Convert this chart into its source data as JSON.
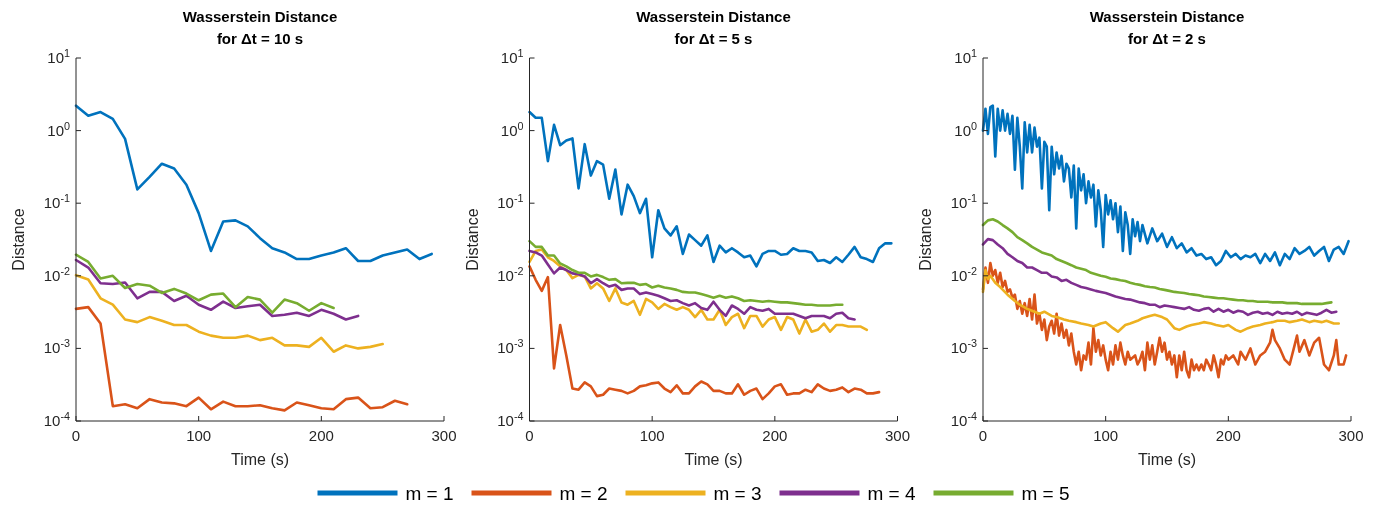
{
  "chart_data": [
    {
      "type": "line",
      "title": "Wasserstein Distance",
      "subtitle": "for  Δt = 10 s",
      "xlabel": "Time (s)",
      "ylabel": "Distance",
      "log": "y",
      "legend": "bottom",
      "xlim": [
        0,
        300
      ],
      "xticks": [
        0,
        100,
        200,
        300
      ],
      "ylim": [
        0.0001,
        10
      ],
      "yticks": [
        {
          "value": 0.0001,
          "label": "10$^{-4}$"
        },
        {
          "value": 0.001,
          "label": "10$^{-3}$"
        },
        {
          "value": 0.01,
          "label": "10$^{-2}$"
        },
        {
          "value": 0.1,
          "label": "10$^{-1}$"
        },
        {
          "value": 1,
          "label": "10$^{0}$"
        },
        {
          "value": 10,
          "label": "10$^{1}$"
        }
      ],
      "series": [
        {
          "name": "m = 1",
          "color": "#0072bd",
          "x": [
            0,
            10,
            20,
            30,
            40,
            50,
            60,
            70,
            80,
            90,
            100,
            110,
            120,
            130,
            140,
            150,
            160,
            170,
            180,
            190,
            200,
            210,
            220,
            230,
            240,
            250,
            260,
            270,
            280,
            290
          ],
          "values": [
            2.2,
            1.6,
            1.8,
            1.45,
            0.77,
            0.155,
            0.23,
            0.35,
            0.3,
            0.18,
            0.073,
            0.022,
            0.056,
            0.058,
            0.048,
            0.033,
            0.024,
            0.021,
            0.017,
            0.017,
            0.019,
            0.021,
            0.024,
            0.016,
            0.016,
            0.019,
            0.021,
            0.023,
            0.017,
            0.02
          ]
        },
        {
          "name": "m = 2",
          "color": "#d95319",
          "x": [
            0,
            10,
            20,
            30,
            40,
            50,
            60,
            70,
            80,
            90,
            100,
            110,
            120,
            130,
            140,
            150,
            160,
            170,
            180,
            190,
            200,
            210,
            220,
            230,
            240,
            250,
            260,
            270
          ],
          "values": [
            0.0035,
            0.0037,
            0.0022,
            0.00016,
            0.00017,
            0.00015,
            0.0002,
            0.00018,
            0.000175,
            0.00016,
            0.00021,
            0.000145,
            0.000185,
            0.00016,
            0.00016,
            0.000165,
            0.00015,
            0.00014,
            0.00018,
            0.000165,
            0.00015,
            0.000145,
            0.0002,
            0.00021,
            0.00015,
            0.000155,
            0.00019,
            0.00017
          ]
        },
        {
          "name": "m = 3",
          "color": "#edb120",
          "x": [
            0,
            10,
            20,
            30,
            40,
            50,
            60,
            70,
            80,
            90,
            100,
            110,
            120,
            130,
            140,
            150,
            160,
            170,
            180,
            190,
            200,
            210,
            220,
            230,
            240,
            250
          ],
          "values": [
            0.0102,
            0.0089,
            0.0049,
            0.004,
            0.0025,
            0.0023,
            0.0027,
            0.0024,
            0.0021,
            0.0021,
            0.0017,
            0.0015,
            0.0014,
            0.0014,
            0.0015,
            0.0013,
            0.0014,
            0.0011,
            0.0011,
            0.00105,
            0.0014,
            0.0009,
            0.0011,
            0.001,
            0.00105,
            0.00115
          ]
        },
        {
          "name": "m = 4",
          "color": "#7e2f8e",
          "x": [
            0,
            10,
            20,
            30,
            40,
            50,
            60,
            70,
            80,
            90,
            100,
            110,
            120,
            130,
            140,
            150,
            160,
            170,
            180,
            190,
            200,
            210,
            220,
            230
          ],
          "values": [
            0.0165,
            0.013,
            0.0079,
            0.0077,
            0.0081,
            0.0049,
            0.006,
            0.006,
            0.0045,
            0.0053,
            0.004,
            0.0034,
            0.0044,
            0.0036,
            0.0038,
            0.004,
            0.0028,
            0.0029,
            0.0031,
            0.0028,
            0.0034,
            0.003,
            0.0025,
            0.0028
          ]
        },
        {
          "name": "m = 5",
          "color": "#77ac30",
          "x": [
            0,
            10,
            20,
            30,
            40,
            50,
            60,
            70,
            80,
            90,
            100,
            110,
            120,
            130,
            140,
            150,
            160,
            170,
            180,
            190,
            200,
            210
          ],
          "values": [
            0.0195,
            0.0155,
            0.0092,
            0.01,
            0.0068,
            0.0077,
            0.0073,
            0.0058,
            0.0066,
            0.0057,
            0.0046,
            0.0055,
            0.0057,
            0.0037,
            0.0051,
            0.0047,
            0.0031,
            0.0047,
            0.0042,
            0.0033,
            0.0042,
            0.0036
          ]
        }
      ]
    },
    {
      "type": "line",
      "title": "Wasserstein Distance",
      "subtitle": "for  Δt = 5 s",
      "xlabel": "Time (s)",
      "ylabel": "Distance",
      "log": "y",
      "xlim": [
        0,
        300
      ],
      "xticks": [
        0,
        100,
        200,
        300
      ],
      "ylim": [
        0.0001,
        10
      ],
      "yticks": [
        {
          "value": 0.0001,
          "label": "10$^{-4}$"
        },
        {
          "value": 0.001,
          "label": "10$^{-3}$"
        },
        {
          "value": 0.01,
          "label": "10$^{-2}$"
        },
        {
          "value": 0.1,
          "label": "10$^{-1}$"
        },
        {
          "value": 1,
          "label": "10$^{0}$"
        },
        {
          "value": 10,
          "label": "10$^{1}$"
        }
      ],
      "series": [
        {
          "color": "#0072bd",
          "x": [
            0,
            5,
            10,
            15,
            20,
            25,
            30,
            35,
            40,
            45,
            50,
            55,
            60,
            65,
            70,
            75,
            80,
            85,
            90,
            95,
            100,
            105,
            110,
            115,
            120,
            125,
            130,
            135,
            140,
            145,
            150,
            155,
            160,
            165,
            170,
            175,
            180,
            185,
            190,
            195,
            200,
            205,
            210,
            215,
            220,
            225,
            230,
            235,
            240,
            245,
            250,
            255,
            260,
            265,
            270,
            275,
            280,
            285,
            290,
            295
          ],
          "values": [
            1.8,
            1.5,
            1.5,
            0.38,
            1.2,
            0.63,
            0.73,
            0.78,
            0.16,
            0.65,
            0.24,
            0.38,
            0.34,
            0.115,
            0.29,
            0.07,
            0.18,
            0.125,
            0.073,
            0.115,
            0.018,
            0.08,
            0.045,
            0.036,
            0.048,
            0.02,
            0.037,
            0.031,
            0.026,
            0.036,
            0.0155,
            0.026,
            0.021,
            0.024,
            0.021,
            0.018,
            0.019,
            0.0135,
            0.02,
            0.022,
            0.022,
            0.0195,
            0.02,
            0.024,
            0.022,
            0.022,
            0.021,
            0.016,
            0.0165,
            0.015,
            0.018,
            0.0155,
            0.0195,
            0.025,
            0.018,
            0.017,
            0.0155,
            0.024,
            0.028,
            0.028
          ]
        },
        {
          "color": "#d95319",
          "x": [
            0,
            5,
            10,
            15,
            20,
            25,
            30,
            35,
            40,
            45,
            50,
            55,
            60,
            65,
            70,
            75,
            80,
            85,
            90,
            95,
            100,
            105,
            110,
            115,
            120,
            125,
            130,
            135,
            140,
            145,
            150,
            155,
            160,
            165,
            170,
            175,
            180,
            185,
            190,
            195,
            200,
            205,
            210,
            215,
            220,
            225,
            230,
            235,
            240,
            245,
            250,
            255,
            260,
            265,
            270,
            275,
            280,
            285
          ],
          "values": [
            0.0135,
            0.0088,
            0.0062,
            0.0096,
            0.00053,
            0.0021,
            0.0008,
            0.00028,
            0.00027,
            0.00034,
            0.0003,
            0.00022,
            0.00023,
            0.00028,
            0.00027,
            0.00026,
            0.00024,
            0.00026,
            0.0003,
            0.00031,
            0.00033,
            0.00034,
            0.00028,
            0.00025,
            0.00031,
            0.00024,
            0.00024,
            0.0003,
            0.00035,
            0.00032,
            0.00026,
            0.00026,
            0.00024,
            0.00024,
            0.00032,
            0.00023,
            0.00026,
            0.00028,
            0.0002,
            0.00024,
            0.0003,
            0.00032,
            0.00023,
            0.00024,
            0.00024,
            0.00027,
            0.00025,
            0.00032,
            0.00028,
            0.00026,
            0.00027,
            0.00029,
            0.00025,
            0.00028,
            0.00027,
            0.00024,
            0.00024,
            0.00025
          ]
        },
        {
          "color": "#edb120",
          "x": [
            0,
            5,
            10,
            15,
            20,
            25,
            30,
            35,
            40,
            45,
            50,
            55,
            60,
            65,
            70,
            75,
            80,
            85,
            90,
            95,
            100,
            105,
            110,
            115,
            120,
            125,
            130,
            135,
            140,
            145,
            150,
            155,
            160,
            165,
            170,
            175,
            180,
            185,
            190,
            195,
            200,
            205,
            210,
            215,
            220,
            225,
            230,
            235,
            240,
            245,
            250,
            255,
            260,
            265,
            270,
            275
          ],
          "values": [
            0.0155,
            0.022,
            0.023,
            0.018,
            0.016,
            0.0135,
            0.012,
            0.0093,
            0.0103,
            0.0098,
            0.0067,
            0.0079,
            0.0067,
            0.0045,
            0.0067,
            0.0043,
            0.004,
            0.0045,
            0.0029,
            0.0048,
            0.0043,
            0.0035,
            0.0041,
            0.0037,
            0.0034,
            0.0037,
            0.0034,
            0.0027,
            0.0034,
            0.0025,
            0.0025,
            0.0034,
            0.0021,
            0.0027,
            0.003,
            0.0019,
            0.0028,
            0.0028,
            0.002,
            0.0025,
            0.0027,
            0.0018,
            0.0027,
            0.0025,
            0.0016,
            0.0025,
            0.0017,
            0.0018,
            0.0022,
            0.0017,
            0.0021,
            0.0021,
            0.002,
            0.002,
            0.002,
            0.0018
          ]
        },
        {
          "color": "#7e2f8e",
          "x": [
            0,
            5,
            10,
            15,
            20,
            25,
            30,
            35,
            40,
            45,
            50,
            55,
            60,
            65,
            70,
            75,
            80,
            85,
            90,
            95,
            100,
            105,
            110,
            115,
            120,
            125,
            130,
            135,
            140,
            145,
            150,
            155,
            160,
            165,
            170,
            175,
            180,
            185,
            190,
            195,
            200,
            205,
            210,
            215,
            220,
            225,
            230,
            235,
            240,
            245,
            250,
            255,
            260,
            265
          ],
          "values": [
            0.022,
            0.021,
            0.019,
            0.0143,
            0.0108,
            0.013,
            0.012,
            0.0108,
            0.0105,
            0.0098,
            0.0079,
            0.009,
            0.0079,
            0.0071,
            0.0075,
            0.0064,
            0.0067,
            0.0067,
            0.0056,
            0.0059,
            0.0056,
            0.0053,
            0.0049,
            0.0045,
            0.0046,
            0.0042,
            0.0039,
            0.0042,
            0.0036,
            0.0034,
            0.0044,
            0.0034,
            0.0028,
            0.0039,
            0.0035,
            0.003,
            0.0037,
            0.0034,
            0.0033,
            0.0035,
            0.003,
            0.003,
            0.003,
            0.003,
            0.0028,
            0.0026,
            0.0028,
            0.0028,
            0.0028,
            0.0026,
            0.003,
            0.0031,
            0.0026,
            0.0025
          ]
        },
        {
          "color": "#77ac30",
          "x": [
            0,
            5,
            10,
            15,
            20,
            25,
            30,
            35,
            40,
            45,
            50,
            55,
            60,
            65,
            70,
            75,
            80,
            85,
            90,
            95,
            100,
            105,
            110,
            115,
            120,
            125,
            130,
            135,
            140,
            145,
            150,
            155,
            160,
            165,
            170,
            175,
            180,
            185,
            190,
            195,
            200,
            205,
            210,
            215,
            220,
            225,
            230,
            235,
            240,
            245,
            250,
            255
          ],
          "values": [
            0.03,
            0.025,
            0.025,
            0.019,
            0.019,
            0.0148,
            0.0135,
            0.012,
            0.011,
            0.011,
            0.0098,
            0.0103,
            0.0096,
            0.0088,
            0.009,
            0.0079,
            0.008,
            0.008,
            0.0075,
            0.0077,
            0.0069,
            0.0073,
            0.0069,
            0.0067,
            0.0064,
            0.006,
            0.0059,
            0.0059,
            0.0056,
            0.0053,
            0.005,
            0.0053,
            0.005,
            0.0052,
            0.0049,
            0.0045,
            0.0046,
            0.0045,
            0.0044,
            0.0045,
            0.0044,
            0.0043,
            0.0043,
            0.0042,
            0.0041,
            0.004,
            0.004,
            0.0039,
            0.0039,
            0.0039,
            0.004,
            0.004
          ]
        }
      ]
    },
    {
      "type": "line",
      "title": "Wasserstein Distance",
      "subtitle": "for  Δt = 2 s",
      "xlabel": "Time (s)",
      "ylabel": "Distance",
      "log": "y",
      "xlim": [
        0,
        300
      ],
      "xticks": [
        0,
        100,
        200,
        300
      ],
      "ylim": [
        0.0001,
        10
      ],
      "yticks": [
        {
          "value": 0.0001,
          "label": "10$^{-4}$"
        },
        {
          "value": 0.001,
          "label": "10$^{-3}$"
        },
        {
          "value": 0.01,
          "label": "10$^{-2}$"
        },
        {
          "value": 0.1,
          "label": "10$^{-1}$"
        },
        {
          "value": 1,
          "label": "10$^{0}$"
        },
        {
          "value": 10,
          "label": "10$^{1}$"
        }
      ],
      "series": [
        {
          "color": "#0072bd",
          "x": [
            0,
            2,
            4,
            6,
            8,
            10,
            12,
            14,
            16,
            18,
            20,
            22,
            24,
            26,
            28,
            30,
            32,
            34,
            36,
            38,
            40,
            42,
            44,
            46,
            48,
            50,
            52,
            54,
            56,
            58,
            60,
            62,
            64,
            66,
            68,
            70,
            72,
            74,
            76,
            78,
            80,
            82,
            84,
            86,
            88,
            90,
            92,
            94,
            96,
            98,
            100,
            102,
            104,
            106,
            108,
            110,
            112,
            114,
            116,
            118,
            120,
            122,
            124,
            126,
            128,
            130,
            134,
            138,
            142,
            146,
            150,
            154,
            158,
            162,
            166,
            170,
            174,
            178,
            182,
            186,
            190,
            194,
            198,
            202,
            206,
            210,
            214,
            218,
            222,
            226,
            230,
            234,
            238,
            242,
            246,
            250,
            254,
            258,
            262,
            266,
            270,
            274,
            278,
            282,
            286,
            290,
            294,
            298
          ],
          "values": [
            1.0,
            2.0,
            0.9,
            2.1,
            2.2,
            0.44,
            2.0,
            1.0,
            1.9,
            1.0,
            1.7,
            0.9,
            1.6,
            0.29,
            1.5,
            0.6,
            0.16,
            1.3,
            0.5,
            1.2,
            0.5,
            1.1,
            0.6,
            0.8,
            0.16,
            0.7,
            0.6,
            0.08,
            0.6,
            0.25,
            0.5,
            0.3,
            0.45,
            0.2,
            0.35,
            0.3,
            0.12,
            0.33,
            0.045,
            0.3,
            0.15,
            0.25,
            0.1,
            0.2,
            0.12,
            0.18,
            0.048,
            0.15,
            0.08,
            0.025,
            0.13,
            0.07,
            0.11,
            0.06,
            0.1,
            0.04,
            0.09,
            0.022,
            0.075,
            0.05,
            0.02,
            0.06,
            0.035,
            0.055,
            0.03,
            0.05,
            0.028,
            0.045,
            0.03,
            0.038,
            0.025,
            0.034,
            0.024,
            0.028,
            0.021,
            0.024,
            0.019,
            0.02,
            0.017,
            0.018,
            0.014,
            0.016,
            0.022,
            0.018,
            0.02,
            0.017,
            0.019,
            0.018,
            0.02,
            0.015,
            0.02,
            0.016,
            0.021,
            0.014,
            0.02,
            0.017,
            0.024,
            0.02,
            0.022,
            0.025,
            0.019,
            0.022,
            0.025,
            0.016,
            0.023,
            0.025,
            0.02,
            0.03
          ]
        },
        {
          "color": "#d95319",
          "x": [
            0,
            2,
            4,
            6,
            8,
            10,
            12,
            14,
            16,
            18,
            20,
            22,
            24,
            26,
            28,
            30,
            32,
            34,
            36,
            38,
            40,
            42,
            44,
            46,
            48,
            50,
            52,
            54,
            56,
            58,
            60,
            62,
            64,
            66,
            68,
            70,
            72,
            74,
            76,
            78,
            80,
            82,
            84,
            86,
            88,
            90,
            92,
            94,
            96,
            98,
            100,
            102,
            104,
            106,
            108,
            110,
            112,
            114,
            116,
            118,
            120,
            124,
            126,
            128,
            130,
            132,
            134,
            136,
            138,
            140,
            142,
            144,
            146,
            148,
            150,
            152,
            154,
            156,
            158,
            160,
            162,
            164,
            166,
            168,
            170,
            172,
            174,
            176,
            178,
            180,
            182,
            184,
            186,
            188,
            190,
            192,
            194,
            196,
            198,
            200,
            204,
            208,
            210,
            214,
            218,
            222,
            226,
            230,
            234,
            236,
            238,
            242,
            246,
            250,
            254,
            256,
            258,
            262,
            266,
            270,
            274,
            278,
            282,
            286,
            288,
            290,
            294,
            296
          ],
          "values": [
            0.0065,
            0.013,
            0.008,
            0.015,
            0.01,
            0.012,
            0.008,
            0.011,
            0.007,
            0.0085,
            0.006,
            0.0065,
            0.005,
            0.0055,
            0.0035,
            0.0045,
            0.003,
            0.0042,
            0.0028,
            0.0048,
            0.0025,
            0.0055,
            0.0022,
            0.003,
            0.0018,
            0.0025,
            0.0013,
            0.002,
            0.0024,
            0.0016,
            0.003,
            0.0015,
            0.0022,
            0.0014,
            0.0018,
            0.0011,
            0.0016,
            0.0009,
            0.0006,
            0.0009,
            0.0005,
            0.0008,
            0.0007,
            0.0012,
            0.0006,
            0.0019,
            0.0009,
            0.0013,
            0.0008,
            0.0011,
            0.0007,
            0.0005,
            0.0009,
            0.0006,
            0.0011,
            0.0007,
            0.0012,
            0.0008,
            0.0006,
            0.0009,
            0.0007,
            0.0008,
            0.0006,
            0.0007,
            0.0009,
            0.0005,
            0.0012,
            0.0007,
            0.0011,
            0.0006,
            0.0009,
            0.0014,
            0.0009,
            0.0012,
            0.0007,
            0.0009,
            0.0006,
            0.0008,
            0.0004,
            0.0008,
            0.0005,
            0.0009,
            0.0005,
            0.0004,
            0.0007,
            0.0005,
            0.0006,
            0.0005,
            0.0006,
            0.0005,
            0.0007,
            0.0006,
            0.0005,
            0.0008,
            0.0006,
            0.0004,
            0.0007,
            0.0006,
            0.0008,
            0.0007,
            0.0008,
            0.0006,
            0.0009,
            0.0007,
            0.001,
            0.0006,
            0.0008,
            0.0009,
            0.0012,
            0.0018,
            0.0013,
            0.001,
            0.0007,
            0.0006,
            0.0011,
            0.0015,
            0.0009,
            0.0013,
            0.0008,
            0.0012,
            0.0014,
            0.0006,
            0.0005,
            0.0008,
            0.0013,
            0.0006,
            0.0006,
            0.0008
          ]
        },
        {
          "color": "#edb120",
          "x": [
            0,
            2,
            4,
            6,
            10,
            14,
            20,
            26,
            30,
            36,
            40,
            46,
            50,
            56,
            60,
            66,
            70,
            76,
            80,
            86,
            90,
            96,
            100,
            106,
            110,
            116,
            120,
            126,
            130,
            136,
            140,
            146,
            150,
            156,
            160,
            166,
            170,
            176,
            180,
            186,
            190,
            196,
            200,
            206,
            210,
            216,
            220,
            226,
            230,
            236,
            240,
            246,
            250,
            256,
            260,
            266,
            270,
            276,
            280,
            286,
            290
          ],
          "values": [
            0.006,
            0.012,
            0.009,
            0.01,
            0.008,
            0.007,
            0.0055,
            0.0045,
            0.004,
            0.0035,
            0.0033,
            0.003,
            0.0032,
            0.0028,
            0.0027,
            0.0025,
            0.0024,
            0.0023,
            0.0022,
            0.0021,
            0.002,
            0.0022,
            0.0023,
            0.0019,
            0.0017,
            0.0021,
            0.0022,
            0.0024,
            0.0026,
            0.0028,
            0.0029,
            0.0027,
            0.0025,
            0.0019,
            0.0018,
            0.002,
            0.0021,
            0.0022,
            0.0023,
            0.0022,
            0.0021,
            0.002,
            0.0021,
            0.0018,
            0.0017,
            0.0019,
            0.002,
            0.0021,
            0.0022,
            0.0023,
            0.0024,
            0.0024,
            0.0023,
            0.0024,
            0.0025,
            0.0023,
            0.0024,
            0.0023,
            0.0024,
            0.0022,
            0.0022
          ]
        },
        {
          "color": "#7e2f8e",
          "x": [
            0,
            4,
            8,
            12,
            16,
            20,
            24,
            28,
            32,
            36,
            40,
            44,
            48,
            52,
            56,
            60,
            64,
            68,
            72,
            76,
            80,
            84,
            88,
            92,
            96,
            100,
            104,
            108,
            112,
            116,
            120,
            124,
            128,
            132,
            136,
            140,
            144,
            148,
            152,
            156,
            160,
            164,
            168,
            172,
            176,
            180,
            184,
            188,
            192,
            196,
            200,
            204,
            208,
            212,
            216,
            220,
            224,
            228,
            232,
            236,
            240,
            244,
            248,
            252,
            256,
            260,
            264,
            268,
            272,
            276,
            280,
            284,
            288
          ],
          "values": [
            0.027,
            0.032,
            0.031,
            0.027,
            0.024,
            0.02,
            0.018,
            0.016,
            0.015,
            0.013,
            0.013,
            0.012,
            0.011,
            0.011,
            0.0098,
            0.0095,
            0.0085,
            0.0088,
            0.008,
            0.0075,
            0.007,
            0.0068,
            0.0065,
            0.0062,
            0.006,
            0.0058,
            0.0055,
            0.0052,
            0.005,
            0.0048,
            0.0047,
            0.0045,
            0.0043,
            0.0042,
            0.004,
            0.004,
            0.0037,
            0.0039,
            0.0038,
            0.0037,
            0.0036,
            0.0035,
            0.0037,
            0.0034,
            0.0033,
            0.0035,
            0.0036,
            0.0032,
            0.0035,
            0.0032,
            0.0034,
            0.0031,
            0.0033,
            0.0032,
            0.0029,
            0.0031,
            0.0032,
            0.003,
            0.0031,
            0.0029,
            0.0032,
            0.003,
            0.0031,
            0.003,
            0.0032,
            0.0029,
            0.0031,
            0.003,
            0.0029,
            0.0031,
            0.0034,
            0.0031,
            0.0032
          ]
        },
        {
          "color": "#77ac30",
          "x": [
            0,
            4,
            8,
            12,
            16,
            20,
            24,
            28,
            32,
            36,
            40,
            44,
            48,
            52,
            56,
            60,
            64,
            68,
            72,
            76,
            80,
            84,
            88,
            92,
            96,
            100,
            104,
            108,
            112,
            116,
            120,
            124,
            128,
            132,
            136,
            140,
            144,
            148,
            152,
            156,
            160,
            164,
            168,
            172,
            176,
            180,
            184,
            188,
            192,
            196,
            200,
            204,
            208,
            212,
            216,
            220,
            224,
            228,
            232,
            236,
            240,
            244,
            248,
            252,
            256,
            260,
            264,
            268,
            272,
            276,
            280,
            284
          ],
          "values": [
            0.05,
            0.058,
            0.06,
            0.056,
            0.05,
            0.045,
            0.04,
            0.034,
            0.031,
            0.028,
            0.025,
            0.023,
            0.021,
            0.02,
            0.019,
            0.017,
            0.016,
            0.015,
            0.014,
            0.013,
            0.0125,
            0.012,
            0.011,
            0.0105,
            0.01,
            0.0097,
            0.0092,
            0.009,
            0.0087,
            0.0085,
            0.008,
            0.0077,
            0.0075,
            0.0072,
            0.007,
            0.0069,
            0.0066,
            0.0064,
            0.0062,
            0.006,
            0.0059,
            0.0058,
            0.0056,
            0.0055,
            0.0054,
            0.0052,
            0.0051,
            0.005,
            0.0049,
            0.0049,
            0.0048,
            0.0047,
            0.0046,
            0.0046,
            0.0045,
            0.0045,
            0.0044,
            0.0044,
            0.0044,
            0.0043,
            0.0043,
            0.0043,
            0.0042,
            0.0042,
            0.0042,
            0.0041,
            0.0041,
            0.0041,
            0.0041,
            0.0041,
            0.0042,
            0.0043
          ]
        }
      ]
    }
  ]
}
